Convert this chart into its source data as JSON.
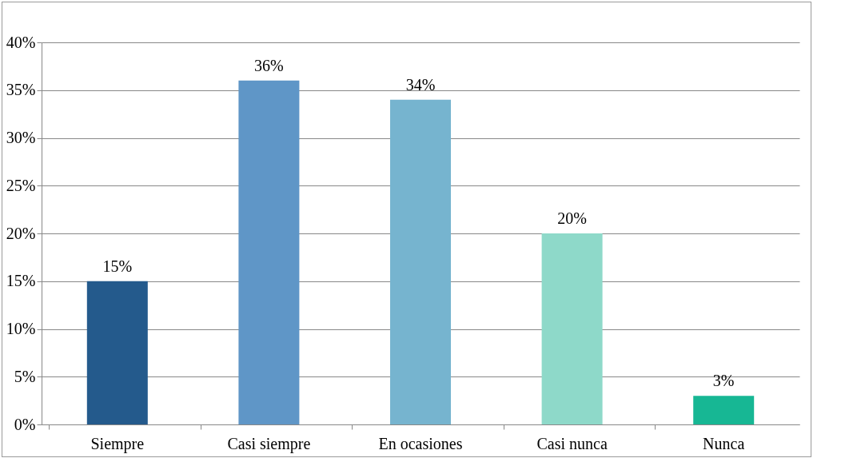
{
  "chart_data": {
    "type": "bar",
    "categories": [
      "Siempre",
      "Casi siempre",
      "En ocasiones",
      "Casi nunca",
      "Nunca"
    ],
    "values": [
      15,
      36,
      34,
      20,
      3
    ],
    "colors": [
      "#245a8c",
      "#5f96c7",
      "#76b4cf",
      "#8ed9c9",
      "#17b794"
    ],
    "ylim": [
      0,
      40
    ],
    "yticks": [
      {
        "value": 0,
        "label": "0%"
      },
      {
        "value": 5,
        "label": "5%"
      },
      {
        "value": 10,
        "label": "10%"
      },
      {
        "value": 15,
        "label": "15%"
      },
      {
        "value": 20,
        "label": "20%"
      },
      {
        "value": 25,
        "label": "25%"
      },
      {
        "value": 30,
        "label": "30%"
      },
      {
        "value": 35,
        "label": "35%"
      },
      {
        "value": 40,
        "label": "40%"
      }
    ],
    "grid": "y",
    "data_labels": true,
    "value_labels": [
      "15%",
      "36%",
      "34%",
      "20%",
      "3%"
    ]
  }
}
